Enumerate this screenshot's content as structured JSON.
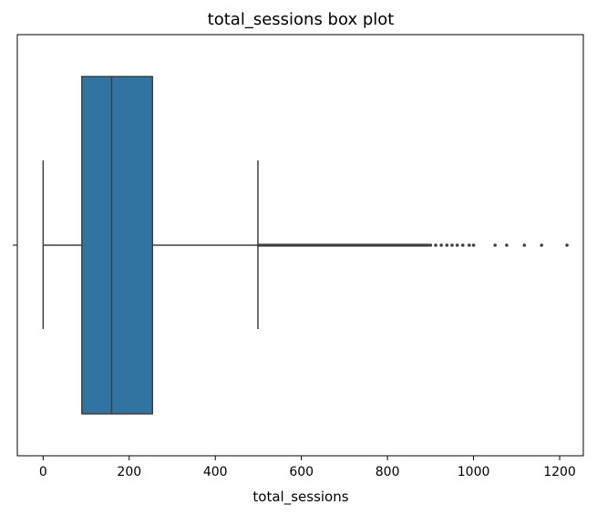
{
  "chart_data": {
    "type": "box",
    "orientation": "horizontal",
    "title": "total_sessions box plot",
    "xlabel": "total_sessions",
    "ylabel": "",
    "xlim": [
      -60,
      1255
    ],
    "xticks": [
      0,
      200,
      400,
      600,
      800,
      1000,
      1200
    ],
    "grid": false,
    "box": {
      "color": "#3274a1",
      "whisker_low": 0,
      "q1": 90,
      "median": 159,
      "q3": 254,
      "whisker_high": 499
    },
    "outlier_band": [
      500,
      895
    ],
    "outliers": [
      900,
      912,
      925,
      938,
      950,
      962,
      975,
      990,
      1000,
      1050,
      1077,
      1118,
      1158,
      1217
    ]
  }
}
